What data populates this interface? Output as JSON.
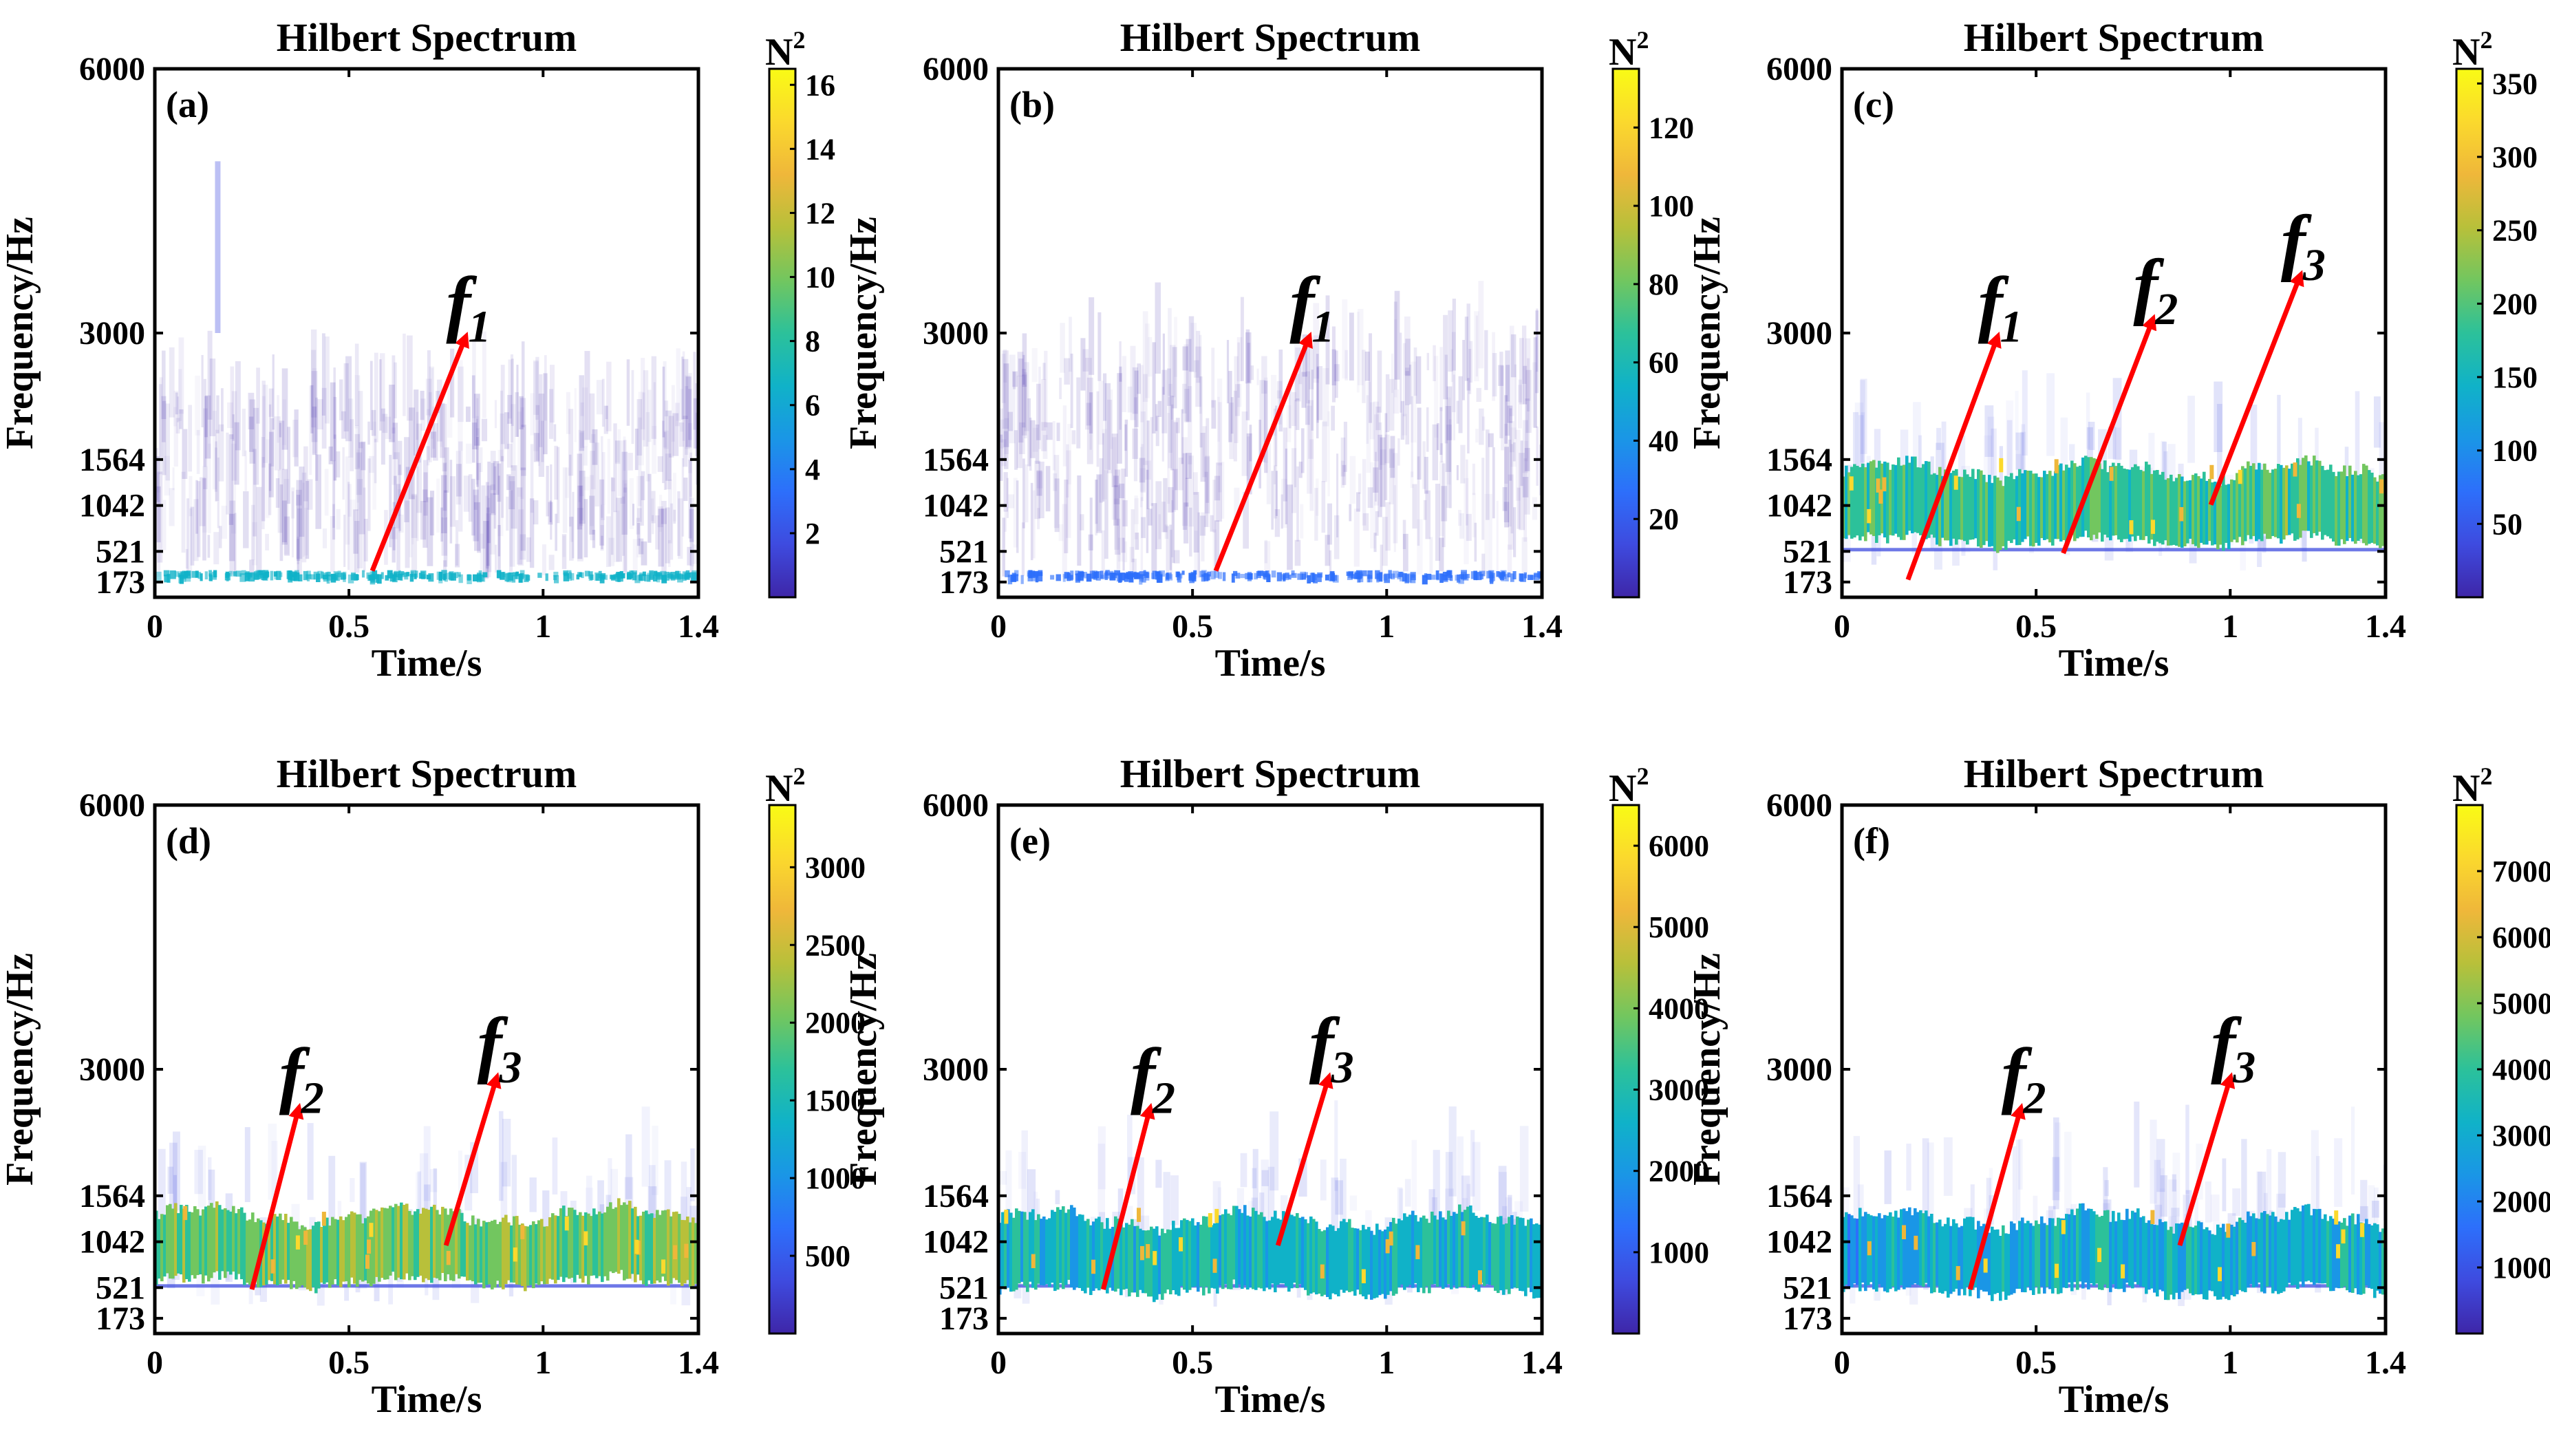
{
  "figure": {
    "colors": {
      "arrow": "#ff0000",
      "frame": "#000000",
      "background": "#ffffff"
    },
    "colormap": [
      "#3e26a8",
      "#3e4bdf",
      "#2d6ffb",
      "#1a96e6",
      "#10b2c8",
      "#2cc19a",
      "#72c65f",
      "#b8c03a",
      "#efb73a",
      "#fbd92d",
      "#f9fb15"
    ]
  },
  "chart_data": [
    {
      "type": "heatmap",
      "panel_label": "(a)",
      "title": "Hilbert Spectrum",
      "xlabel": "Time/s",
      "ylabel": "Frequency/Hz",
      "colorbar_label": "N",
      "colorbar_label_sup": "2",
      "xlim": [
        0,
        1.4
      ],
      "ylim": [
        0,
        6000
      ],
      "xticks": [
        0,
        0.5,
        1,
        1.4
      ],
      "xtick_labels": [
        "0",
        "0.5",
        "1",
        "1.4"
      ],
      "yticks": [
        173,
        521,
        1042,
        1564,
        3000,
        6000
      ],
      "ytick_labels": [
        "173",
        "521",
        "1042",
        "1564",
        "3000",
        "6000"
      ],
      "clim": [
        0,
        16.5
      ],
      "cticks": [
        2,
        4,
        6,
        8,
        10,
        12,
        14,
        16
      ],
      "ctick_labels": [
        "2",
        "4",
        "6",
        "8",
        "10",
        "12",
        "14",
        "16"
      ],
      "annotations": [
        {
          "letter": "f",
          "sub": "1",
          "from": [
            0.56,
            300
          ],
          "to": [
            0.8,
            2950
          ]
        }
      ]
    },
    {
      "type": "heatmap",
      "panel_label": "(b)",
      "title": "Hilbert Spectrum",
      "xlabel": "Time/s",
      "ylabel": "Frequency/Hz",
      "colorbar_label": "N",
      "colorbar_label_sup": "2",
      "xlim": [
        0,
        1.4
      ],
      "ylim": [
        0,
        6000
      ],
      "xticks": [
        0,
        0.5,
        1,
        1.4
      ],
      "xtick_labels": [
        "0",
        "0.5",
        "1",
        "1.4"
      ],
      "yticks": [
        173,
        521,
        1042,
        1564,
        3000,
        6000
      ],
      "ytick_labels": [
        "173",
        "521",
        "1042",
        "1564",
        "3000",
        "6000"
      ],
      "clim": [
        0,
        135
      ],
      "cticks": [
        20,
        40,
        60,
        80,
        100,
        120
      ],
      "ctick_labels": [
        "20",
        "40",
        "60",
        "80",
        "100",
        "120"
      ],
      "annotations": [
        {
          "letter": "f",
          "sub": "1",
          "from": [
            0.56,
            300
          ],
          "to": [
            0.8,
            2950
          ]
        }
      ]
    },
    {
      "type": "heatmap",
      "panel_label": "(c)",
      "title": "Hilbert Spectrum",
      "xlabel": "Time/s",
      "ylabel": "Frequency/Hz",
      "colorbar_label": "N",
      "colorbar_label_sup": "2",
      "xlim": [
        0,
        1.4
      ],
      "ylim": [
        0,
        6000
      ],
      "xticks": [
        0,
        0.5,
        1,
        1.4
      ],
      "xtick_labels": [
        "0",
        "0.5",
        "1",
        "1.4"
      ],
      "yticks": [
        173,
        521,
        1042,
        1564,
        3000,
        6000
      ],
      "ytick_labels": [
        "173",
        "521",
        "1042",
        "1564",
        "3000",
        "6000"
      ],
      "clim": [
        0,
        360
      ],
      "cticks": [
        50,
        100,
        150,
        200,
        250,
        300,
        350
      ],
      "ctick_labels": [
        "50",
        "100",
        "150",
        "200",
        "250",
        "300",
        "350"
      ],
      "annotations": [
        {
          "letter": "f",
          "sub": "1",
          "from": [
            0.17,
            200
          ],
          "to": [
            0.4,
            2950
          ]
        },
        {
          "letter": "f",
          "sub": "2",
          "from": [
            0.57,
            500
          ],
          "to": [
            0.8,
            3150
          ]
        },
        {
          "letter": "f",
          "sub": "3",
          "from": [
            0.95,
            1050
          ],
          "to": [
            1.18,
            3650
          ]
        }
      ]
    },
    {
      "type": "heatmap",
      "panel_label": "(d)",
      "title": "Hilbert Spectrum",
      "xlabel": "Time/s",
      "ylabel": "Frequency/Hz",
      "colorbar_label": "N",
      "colorbar_label_sup": "2",
      "xlim": [
        0,
        1.4
      ],
      "ylim": [
        0,
        6000
      ],
      "xticks": [
        0,
        0.5,
        1,
        1.4
      ],
      "xtick_labels": [
        "0",
        "0.5",
        "1",
        "1.4"
      ],
      "yticks": [
        173,
        521,
        1042,
        1564,
        3000,
        6000
      ],
      "ytick_labels": [
        "173",
        "521",
        "1042",
        "1564",
        "3000",
        "6000"
      ],
      "clim": [
        0,
        3400
      ],
      "cticks": [
        500,
        1000,
        1500,
        2000,
        2500,
        3000
      ],
      "ctick_labels": [
        "500",
        "1000",
        "1500",
        "2000",
        "2500",
        "3000"
      ],
      "annotations": [
        {
          "letter": "f",
          "sub": "2",
          "from": [
            0.25,
            500
          ],
          "to": [
            0.37,
            2550
          ]
        },
        {
          "letter": "f",
          "sub": "3",
          "from": [
            0.75,
            1000
          ],
          "to": [
            0.88,
            2900
          ]
        }
      ]
    },
    {
      "type": "heatmap",
      "panel_label": "(e)",
      "title": "Hilbert Spectrum",
      "xlabel": "Time/s",
      "ylabel": "Frequency/Hz",
      "colorbar_label": "N",
      "colorbar_label_sup": "2",
      "xlim": [
        0,
        1.4
      ],
      "ylim": [
        0,
        6000
      ],
      "xticks": [
        0,
        0.5,
        1,
        1.4
      ],
      "xtick_labels": [
        "0",
        "0.5",
        "1",
        "1.4"
      ],
      "yticks": [
        173,
        521,
        1042,
        1564,
        3000,
        6000
      ],
      "ytick_labels": [
        "173",
        "521",
        "1042",
        "1564",
        "3000",
        "6000"
      ],
      "clim": [
        0,
        6500
      ],
      "cticks": [
        1000,
        2000,
        3000,
        4000,
        5000,
        6000
      ],
      "ctick_labels": [
        "1000",
        "2000",
        "3000",
        "4000",
        "5000",
        "6000"
      ],
      "annotations": [
        {
          "letter": "f",
          "sub": "2",
          "from": [
            0.27,
            500
          ],
          "to": [
            0.39,
            2550
          ]
        },
        {
          "letter": "f",
          "sub": "3",
          "from": [
            0.72,
            1000
          ],
          "to": [
            0.85,
            2900
          ]
        }
      ]
    },
    {
      "type": "heatmap",
      "panel_label": "(f)",
      "title": "Hilbert Spectrum",
      "xlabel": "Time/s",
      "ylabel": "Frequency/Hz",
      "colorbar_label": "N",
      "colorbar_label_sup": "2",
      "xlim": [
        0,
        1.4
      ],
      "ylim": [
        0,
        6000
      ],
      "xticks": [
        0,
        0.5,
        1,
        1.4
      ],
      "xtick_labels": [
        "0",
        "0.5",
        "1",
        "1.4"
      ],
      "yticks": [
        173,
        521,
        1042,
        1564,
        3000,
        6000
      ],
      "ytick_labels": [
        "173",
        "521",
        "1042",
        "1564",
        "3000",
        "6000"
      ],
      "clim": [
        0,
        8000
      ],
      "cticks": [
        1000,
        2000,
        3000,
        4000,
        5000,
        6000,
        7000
      ],
      "ctick_labels": [
        "1000",
        "2000",
        "3000",
        "4000",
        "5000",
        "6000",
        "7000"
      ],
      "annotations": [
        {
          "letter": "f",
          "sub": "2",
          "from": [
            0.33,
            500
          ],
          "to": [
            0.46,
            2550
          ]
        },
        {
          "letter": "f",
          "sub": "3",
          "from": [
            0.87,
            1000
          ],
          "to": [
            1.0,
            2900
          ]
        }
      ]
    }
  ]
}
